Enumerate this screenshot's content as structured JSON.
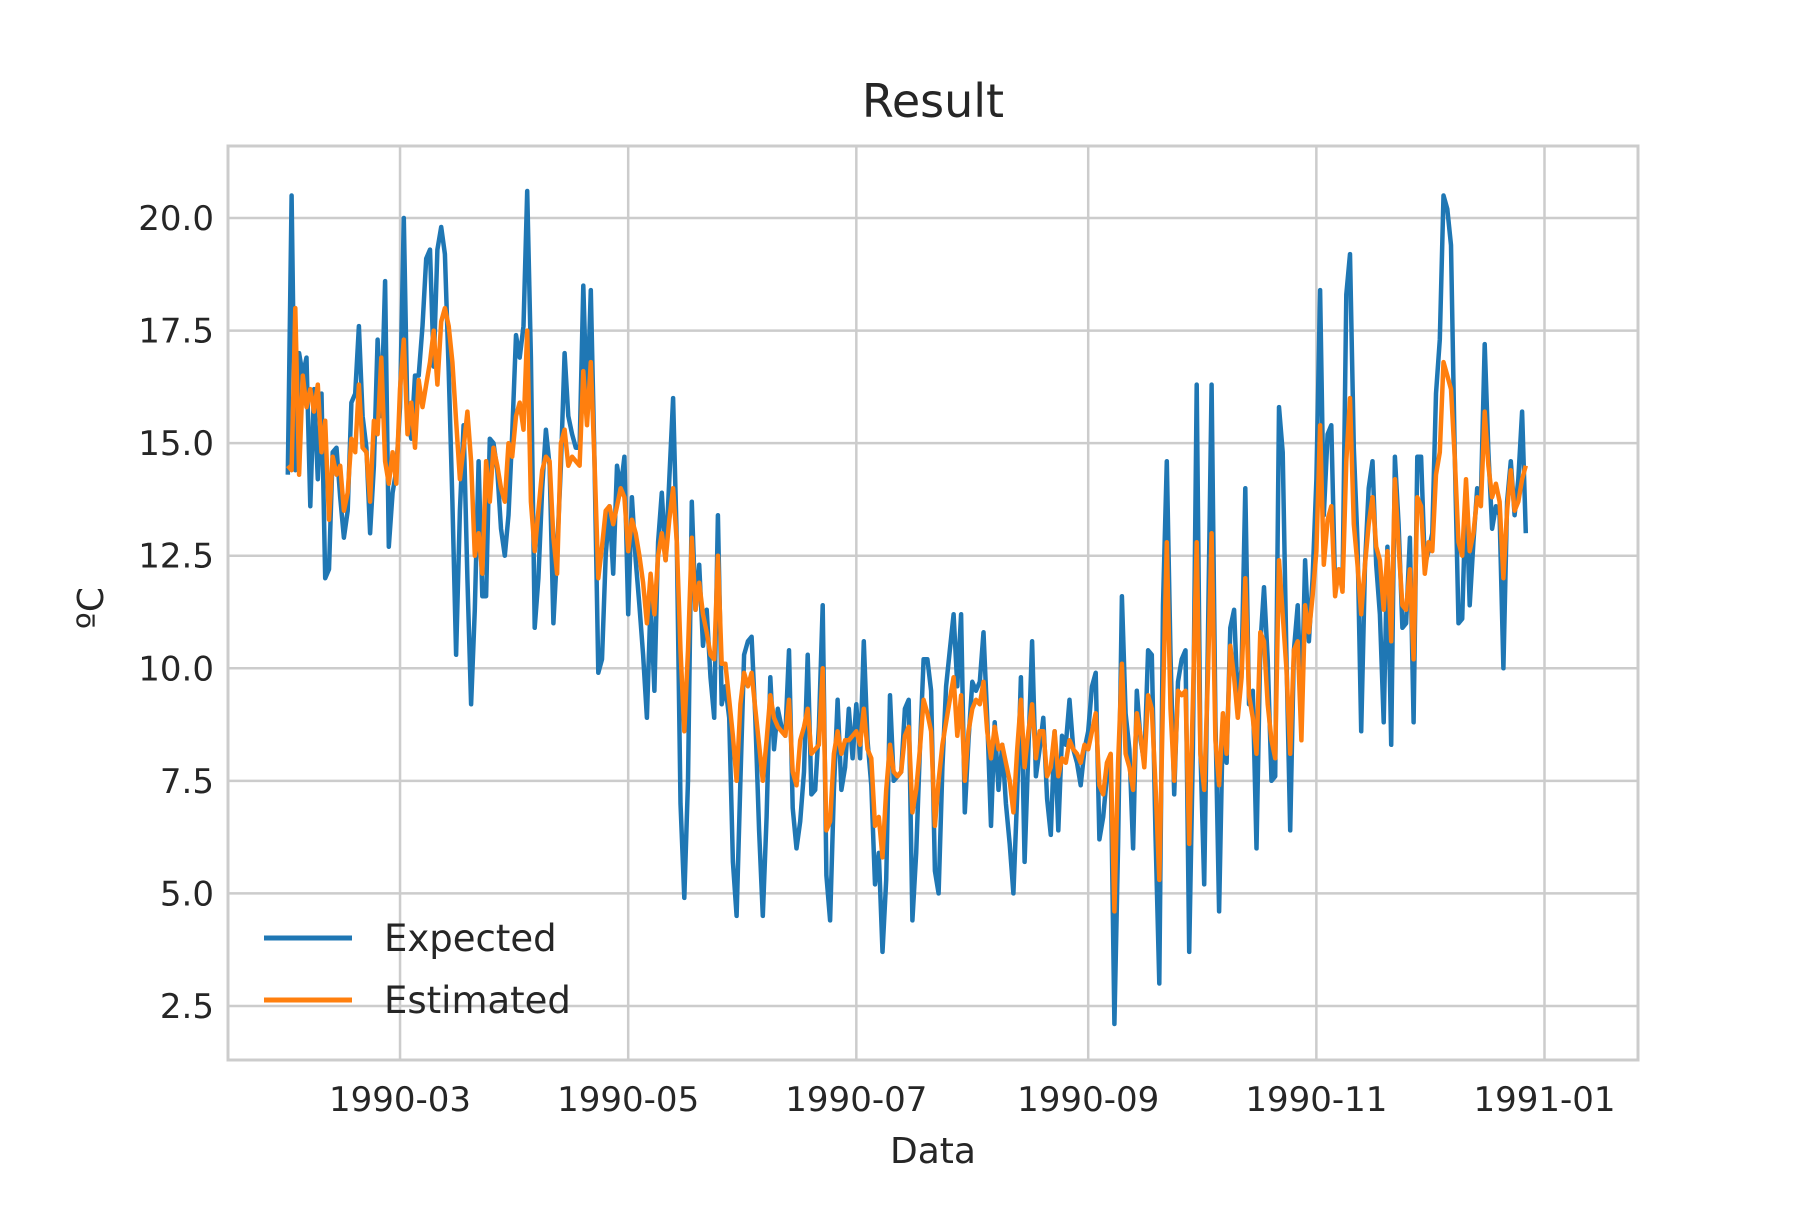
{
  "chart_data": {
    "type": "line",
    "title": "Result",
    "xlabel": "Data",
    "ylabel": "ºC",
    "x_ticks": [
      "1990-03",
      "1990-05",
      "1990-07",
      "1990-09",
      "1990-11",
      "1991-01"
    ],
    "y_ticks": [
      "2.5",
      "5.0",
      "7.5",
      "10.0",
      "12.5",
      "15.0",
      "17.5",
      "20.0"
    ],
    "xlim": [
      "1990-01-14",
      "1991-01-26"
    ],
    "ylim": [
      1.3,
      21.6
    ],
    "grid": true,
    "legend": "lower-left",
    "x_start": "1990-01-30",
    "series": [
      {
        "name": "Expected",
        "color": "#1f77b4",
        "values": [
          14.3,
          20.5,
          14.4,
          17.0,
          16.5,
          16.9,
          13.6,
          16.2,
          14.2,
          16.1,
          12.0,
          12.2,
          14.8,
          14.9,
          13.8,
          12.9,
          13.5,
          15.9,
          16.1,
          17.6,
          15.6,
          14.9,
          13.0,
          14.5,
          17.3,
          15.6,
          18.6,
          12.7,
          13.9,
          14.4,
          15.8,
          20.0,
          15.5,
          15.1,
          16.5,
          16.5,
          17.6,
          19.1,
          19.3,
          16.7,
          19.3,
          19.8,
          19.2,
          16.6,
          13.7,
          10.3,
          13.5,
          15.4,
          12.0,
          9.2,
          11.3,
          14.6,
          11.6,
          11.6,
          15.1,
          15.0,
          14.4,
          13.1,
          12.5,
          13.4,
          15.2,
          17.4,
          16.9,
          17.6,
          20.6,
          16.9,
          10.9,
          12.0,
          14.0,
          15.3,
          14.5,
          11.0,
          12.6,
          14.5,
          17.0,
          15.6,
          15.2,
          14.9,
          14.9,
          18.5,
          15.7,
          18.4,
          14.6,
          9.9,
          10.2,
          12.5,
          13.6,
          12.1,
          14.5,
          14.0,
          14.7,
          11.2,
          13.8,
          12.4,
          11.4,
          10.3,
          8.9,
          11.5,
          9.5,
          12.8,
          13.9,
          12.4,
          14.2,
          16.0,
          12.8,
          7.0,
          4.9,
          7.5,
          13.7,
          11.3,
          12.3,
          10.5,
          11.3,
          9.8,
          8.9,
          13.4,
          9.2,
          9.6,
          8.9,
          5.7,
          4.5,
          7.5,
          10.3,
          10.6,
          10.7,
          8.9,
          6.4,
          4.5,
          6.7,
          9.8,
          8.2,
          9.1,
          8.7,
          8.5,
          10.4,
          6.9,
          6.0,
          6.6,
          7.7,
          10.3,
          7.2,
          7.3,
          8.7,
          11.4,
          5.4,
          4.4,
          7.3,
          9.3,
          7.3,
          7.8,
          9.1,
          8.0,
          9.2,
          8.0,
          10.6,
          8.4,
          7.4,
          5.2,
          5.9,
          3.7,
          5.3,
          9.4,
          7.5,
          7.6,
          7.7,
          9.1,
          9.3,
          4.4,
          5.9,
          8.2,
          10.2,
          10.2,
          9.5,
          5.5,
          5.0,
          7.8,
          9.6,
          10.4,
          11.2,
          9.6,
          11.2,
          6.8,
          8.4,
          9.7,
          9.5,
          9.7,
          10.8,
          8.9,
          6.5,
          8.8,
          7.3,
          8.3,
          7.0,
          6.1,
          5.0,
          7.2,
          9.8,
          5.7,
          8.2,
          10.6,
          7.6,
          8.2,
          8.9,
          7.1,
          6.3,
          8.6,
          6.4,
          8.5,
          8.3,
          9.3,
          8.2,
          7.9,
          7.4,
          8.2,
          8.6,
          9.6,
          9.9,
          6.2,
          6.7,
          7.6,
          7.9,
          2.1,
          6.1,
          11.6,
          9.0,
          8.2,
          6.0,
          9.5,
          8.4,
          7.9,
          10.4,
          10.3,
          6.3,
          3.0,
          11.4,
          14.6,
          10.3,
          7.2,
          9.7,
          10.2,
          10.4,
          3.7,
          8.2,
          16.3,
          8.2,
          5.2,
          10.6,
          16.3,
          8.9,
          4.6,
          8.9,
          7.9,
          10.9,
          11.3,
          9.2,
          10.0,
          14.0,
          9.2,
          9.5,
          6.0,
          10.5,
          11.8,
          10.2,
          7.5,
          7.6,
          15.8,
          14.8,
          10.3,
          6.4,
          10.4,
          11.4,
          9.0,
          12.4,
          10.6,
          12.0,
          14.2,
          18.4,
          13.4,
          15.2,
          15.4,
          11.8,
          12.1,
          11.8,
          18.3,
          19.2,
          14.9,
          12.8,
          8.6,
          12.3,
          14.0,
          14.6,
          12.3,
          11.2,
          8.8,
          12.7,
          8.3,
          14.7,
          13.2,
          10.9,
          11.0,
          12.9,
          8.8,
          14.7,
          14.7,
          12.3,
          12.6,
          13.0,
          16.1,
          17.3,
          20.5,
          20.2,
          19.4,
          14.8,
          11.0,
          11.1,
          14.0,
          11.4,
          12.8,
          14.0,
          13.8,
          17.2,
          14.8,
          13.1,
          13.6,
          13.4,
          10.0,
          13.7,
          14.6,
          13.4,
          14.2,
          15.7,
          13.0
        ]
      },
      {
        "name": "Estimated",
        "color": "#ff7f0e",
        "values": [
          14.5,
          14.4,
          18.0,
          14.3,
          16.5,
          15.8,
          16.2,
          15.7,
          16.3,
          14.8,
          15.5,
          13.3,
          14.7,
          14.3,
          14.5,
          13.5,
          13.9,
          15.1,
          14.8,
          16.3,
          14.9,
          14.8,
          13.7,
          15.5,
          15.2,
          16.9,
          14.6,
          14.1,
          14.8,
          14.1,
          16.2,
          17.3,
          15.2,
          15.9,
          14.9,
          16.4,
          15.8,
          16.3,
          16.8,
          17.5,
          16.3,
          17.7,
          18.0,
          17.6,
          16.8,
          15.5,
          14.2,
          14.9,
          15.7,
          14.6,
          12.5,
          13.0,
          12.1,
          14.6,
          13.7,
          14.9,
          14.5,
          14.0,
          13.7,
          15.0,
          14.7,
          15.6,
          15.9,
          15.3,
          17.5,
          13.7,
          12.6,
          13.5,
          14.4,
          14.7,
          14.6,
          12.9,
          12.1,
          15.0,
          15.3,
          14.5,
          14.7,
          14.6,
          14.5,
          16.6,
          15.4,
          16.8,
          14.6,
          12.0,
          12.7,
          13.5,
          13.6,
          13.2,
          13.6,
          14.0,
          13.8,
          12.6,
          13.3,
          13.0,
          12.5,
          11.9,
          11.0,
          12.1,
          11.2,
          12.5,
          13.0,
          12.4,
          13.3,
          14.0,
          12.8,
          10.4,
          8.6,
          10.4,
          12.9,
          11.3,
          11.9,
          11.2,
          10.8,
          10.3,
          10.2,
          12.5,
          10.1,
          10.1,
          9.3,
          8.5,
          7.5,
          9.2,
          9.9,
          9.6,
          9.9,
          9.1,
          8.3,
          7.5,
          8.4,
          9.4,
          8.9,
          8.7,
          8.6,
          8.5,
          9.3,
          7.7,
          7.4,
          8.4,
          8.7,
          9.1,
          8.1,
          8.2,
          8.3,
          10.0,
          6.4,
          6.6,
          8.1,
          8.6,
          8.1,
          8.4,
          8.4,
          8.5,
          8.6,
          8.3,
          9.1,
          8.2,
          8.0,
          6.5,
          6.7,
          5.8,
          7.3,
          8.3,
          7.7,
          7.6,
          7.7,
          8.5,
          8.7,
          6.8,
          7.3,
          8.2,
          9.3,
          9.0,
          8.6,
          6.5,
          7.5,
          8.3,
          8.8,
          9.3,
          9.8,
          8.5,
          9.4,
          7.5,
          8.6,
          9.1,
          9.3,
          9.2,
          9.7,
          8.6,
          8.0,
          8.7,
          8.2,
          8.3,
          7.9,
          7.5,
          6.8,
          8.2,
          9.3,
          7.8,
          8.6,
          9.2,
          8.0,
          8.6,
          8.6,
          7.6,
          7.8,
          8.6,
          7.6,
          8.0,
          7.9,
          8.4,
          8.2,
          8.1,
          7.9,
          8.3,
          8.2,
          8.6,
          9.0,
          7.4,
          7.2,
          7.9,
          8.1,
          4.6,
          7.9,
          10.1,
          8.1,
          7.8,
          7.3,
          9.0,
          8.5,
          7.8,
          9.4,
          9.1,
          7.4,
          5.3,
          9.3,
          12.8,
          9.1,
          7.5,
          9.5,
          9.4,
          9.5,
          6.1,
          9.3,
          12.8,
          8.1,
          7.3,
          9.8,
          13.0,
          8.4,
          7.4,
          9.0,
          8.1,
          10.5,
          9.8,
          8.9,
          9.8,
          12.0,
          9.4,
          8.9,
          8.1,
          10.8,
          10.6,
          9.2,
          8.4,
          8.0,
          12.4,
          11.2,
          10.0,
          8.1,
          10.4,
          10.6,
          8.4,
          11.4,
          10.8,
          11.6,
          12.6,
          15.4,
          12.3,
          13.3,
          13.6,
          11.6,
          12.2,
          11.7,
          14.6,
          16.0,
          13.2,
          12.3,
          11.2,
          12.3,
          13.2,
          13.8,
          12.7,
          12.4,
          11.3,
          12.6,
          10.6,
          14.2,
          12.7,
          11.4,
          11.3,
          12.2,
          10.2,
          13.8,
          13.6,
          12.1,
          12.8,
          12.6,
          14.3,
          14.8,
          16.8,
          16.5,
          16.2,
          14.7,
          12.8,
          12.5,
          14.2,
          12.6,
          13.0,
          13.8,
          13.6,
          15.7,
          14.5,
          13.8,
          14.1,
          13.7,
          12.0,
          13.5,
          14.4,
          13.5,
          13.7,
          14.2,
          14.5
        ]
      }
    ]
  }
}
